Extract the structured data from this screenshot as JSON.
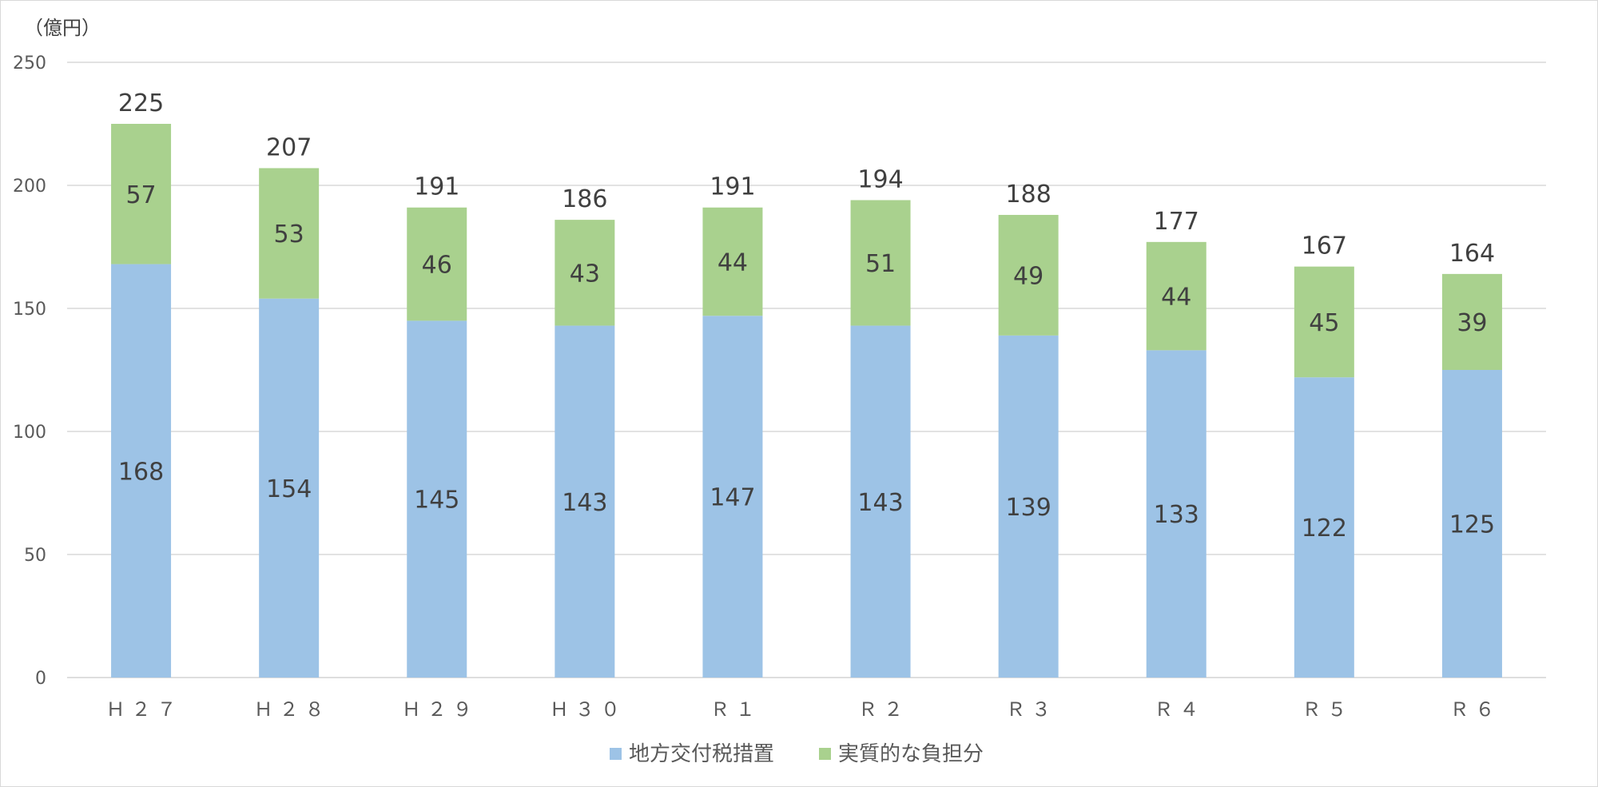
{
  "chart_data": {
    "type": "bar",
    "stacked": true,
    "unit_label": "（億円）",
    "categories": [
      "Ｈ２７",
      "Ｈ２８",
      "Ｈ２９",
      "Ｈ３０",
      "Ｒ１",
      "Ｒ２",
      "Ｒ３",
      "Ｒ４",
      "Ｒ５",
      "Ｒ６"
    ],
    "series": [
      {
        "name": "地方交付税措置",
        "color": "#9dc3e6",
        "values": [
          168,
          154,
          145,
          143,
          147,
          143,
          139,
          133,
          122,
          125
        ]
      },
      {
        "name": "実質的な負担分",
        "color": "#a9d18e",
        "values": [
          57,
          53,
          46,
          43,
          44,
          51,
          49,
          44,
          45,
          39
        ]
      }
    ],
    "totals": [
      225,
      207,
      191,
      186,
      191,
      194,
      188,
      177,
      167,
      164
    ],
    "ylim": [
      0,
      250
    ],
    "yticks": [
      0,
      50,
      100,
      150,
      200,
      250
    ],
    "grid": true,
    "legend": "bottom"
  }
}
